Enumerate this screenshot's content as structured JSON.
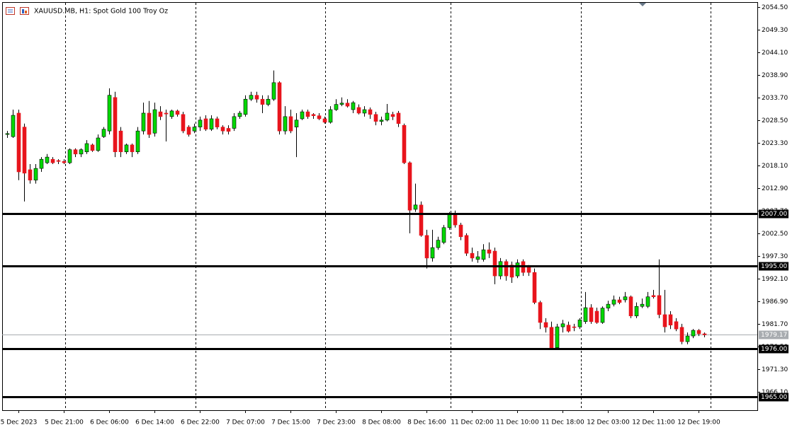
{
  "chart_data": {
    "type": "candlestick",
    "title": "XAUUSD.MB, H1:  Spot Gold 100 Troy Oz",
    "up_color": "#00d800",
    "down_color": "#e8141c",
    "wick_color": "#000000",
    "categories": [
      null,
      null,
      "5 Dec 2023",
      null,
      null,
      null,
      null,
      null,
      null,
      null,
      "5 Dec 21:00",
      null,
      null,
      null,
      null,
      null,
      null,
      null,
      "6 Dec 06:00",
      null,
      null,
      null,
      null,
      null,
      null,
      null,
      "6 Dec 14:00",
      null,
      null,
      null,
      null,
      null,
      null,
      null,
      "6 Dec 22:00",
      null,
      null,
      null,
      null,
      null,
      null,
      null,
      "7 Dec 07:00",
      null,
      null,
      null,
      null,
      null,
      null,
      null,
      "7 Dec 15:00",
      null,
      null,
      null,
      null,
      null,
      null,
      null,
      "7 Dec 23:00",
      null,
      null,
      null,
      null,
      null,
      null,
      null,
      "8 Dec 08:00",
      null,
      null,
      null,
      null,
      null,
      null,
      null,
      "8 Dec 16:00",
      null,
      null,
      null,
      null,
      null,
      null,
      null,
      "11 Dec 02:00",
      null,
      null,
      null,
      null,
      null,
      null,
      null,
      "11 Dec 10:00",
      null,
      null,
      null,
      null,
      null,
      null,
      null,
      "11 Dec 18:00",
      null,
      null,
      null,
      null,
      null,
      null,
      null,
      "12 Dec 03:00",
      null,
      null,
      null,
      null,
      null,
      null,
      null,
      "12 Dec 11:00",
      null,
      null,
      null,
      null,
      null,
      null,
      null,
      "12 Dec 19:00",
      null
    ],
    "open": [
      2025.2,
      2024.7,
      2030.1,
      2026.9,
      2017.1,
      2014.7,
      2017.4,
      2018.7,
      2019.5,
      2019.2,
      2019.0,
      2018.7,
      2021.7,
      2020.7,
      2021.2,
      2022.8,
      2021.5,
      2024.7,
      2026.0,
      2033.7,
      2026.0,
      2021.2,
      2022.8,
      2021.2,
      2026.0,
      2030.1,
      2025.5,
      2030.4,
      2030.1,
      2029.3,
      2030.6,
      2029.8,
      2026.9,
      2026.0,
      2026.9,
      2028.8,
      2026.4,
      2028.8,
      2026.9,
      2026.6,
      2026.6,
      2029.3,
      2029.8,
      2033.3,
      2034.2,
      2033.3,
      2032.1,
      2033.3,
      2037.1,
      2026.0,
      2029.3,
      2026.9,
      2028.8,
      2030.4,
      2029.8,
      2029.5,
      2028.8,
      2028.0,
      2030.9,
      2032.1,
      2032.4,
      2030.9,
      2031.4,
      2030.1,
      2030.9,
      2029.8,
      2028.2,
      2028.5,
      2029.8,
      2030.1,
      2027.3,
      2018.7,
      2008.0,
      2009.0,
      2002.0,
      1996.8,
      1999.2,
      2000.4,
      2003.8,
      2006.9,
      2004.4,
      2002.0,
      1997.9,
      1996.5,
      1996.5,
      1998.7,
      1998.4,
      1992.7,
      1996.0,
      1995.2,
      1992.7,
      1996.0,
      1994.7,
      1993.5,
      1986.6,
      1982.0,
      1980.9,
      1976.2,
      1981.0,
      1981.4,
      1981.0,
      1981.0,
      1982.2,
      1985.4,
      1984.6,
      1982.0,
      1985.3,
      1986.2,
      1987.2,
      1987.2,
      1987.9,
      1983.5,
      1985.7,
      1985.7,
      1988.2,
      1988.2,
      1983.8,
      1983.8,
      1982.2,
      1980.9,
      1977.6,
      1978.9,
      1980.2,
      1979.4
    ],
    "high": [
      2026.0,
      2030.9,
      2030.9,
      2027.7,
      2018.4,
      2018.4,
      2020.0,
      2020.7,
      2020.0,
      2019.5,
      2019.5,
      2022.0,
      2022.0,
      2022.0,
      2023.9,
      2023.1,
      2025.2,
      2026.9,
      2035.8,
      2035.0,
      2026.9,
      2023.1,
      2023.1,
      2026.9,
      2032.5,
      2032.9,
      2032.5,
      2031.7,
      2030.9,
      2030.9,
      2030.9,
      2030.4,
      2027.3,
      2027.7,
      2029.3,
      2029.6,
      2029.6,
      2029.3,
      2027.3,
      2027.3,
      2030.1,
      2030.6,
      2034.2,
      2035.0,
      2035.0,
      2034.2,
      2034.2,
      2039.9,
      2037.4,
      2031.7,
      2030.9,
      2030.1,
      2030.9,
      2030.9,
      2030.1,
      2030.1,
      2029.3,
      2031.7,
      2033.3,
      2033.7,
      2033.3,
      2032.9,
      2032.1,
      2031.7,
      2031.4,
      2030.4,
      2029.3,
      2032.2,
      2030.4,
      2030.6,
      2027.7,
      2019.0,
      2013.9,
      2009.8,
      2003.3,
      2003.3,
      2001.7,
      2004.4,
      2007.4,
      2007.7,
      2004.9,
      2002.5,
      1999.2,
      1998.4,
      2000.0,
      2000.4,
      1999.2,
      1996.8,
      1996.5,
      1996.0,
      1996.5,
      1996.5,
      1995.2,
      1994.4,
      1987.0,
      1983.0,
      1982.2,
      1981.7,
      1982.6,
      1982.2,
      1981.7,
      1983.0,
      1989.0,
      1986.2,
      1985.4,
      1985.7,
      1987.0,
      1988.2,
      1987.9,
      1989.0,
      1988.2,
      1986.6,
      1987.5,
      1989.0,
      1989.5,
      1996.5,
      1989.5,
      1984.6,
      1983.0,
      1981.7,
      1979.7,
      1980.5,
      1980.5,
      1979.7
    ],
    "low": [
      2024.4,
      2024.4,
      2014.7,
      2009.8,
      2013.9,
      2013.9,
      2016.6,
      2018.4,
      2018.4,
      2018.4,
      2018.4,
      2018.4,
      2020.0,
      2020.0,
      2020.7,
      2021.2,
      2021.2,
      2024.4,
      2025.2,
      2020.0,
      2020.0,
      2020.7,
      2020.0,
      2020.7,
      2025.2,
      2024.4,
      2024.7,
      2028.5,
      2023.6,
      2028.8,
      2029.3,
      2025.5,
      2024.7,
      2025.5,
      2026.0,
      2026.0,
      2026.0,
      2026.4,
      2025.2,
      2025.2,
      2026.0,
      2028.8,
      2029.3,
      2032.9,
      2032.5,
      2030.1,
      2031.7,
      2032.9,
      2025.2,
      2025.2,
      2025.5,
      2020.0,
      2028.5,
      2028.8,
      2028.8,
      2028.5,
      2027.7,
      2027.7,
      2030.6,
      2031.7,
      2031.4,
      2030.1,
      2029.8,
      2029.3,
      2028.8,
      2027.3,
      2027.3,
      2028.2,
      2028.5,
      2026.9,
      2018.4,
      2002.5,
      2007.4,
      2001.7,
      1994.4,
      1996.0,
      1998.7,
      2000.0,
      2003.3,
      2003.8,
      2000.9,
      1997.3,
      1996.0,
      1995.7,
      1996.0,
      1996.8,
      1990.8,
      1991.9,
      1991.6,
      1991.1,
      1992.2,
      1992.7,
      1992.7,
      1986.2,
      1980.5,
      1979.7,
      1976.0,
      1976.0,
      1979.7,
      1979.7,
      1980.0,
      1980.5,
      1981.7,
      1981.7,
      1981.7,
      1981.7,
      1984.6,
      1985.7,
      1986.2,
      1986.6,
      1983.0,
      1983.0,
      1985.3,
      1985.3,
      1987.5,
      1983.0,
      1979.7,
      1980.5,
      1980.0,
      1977.0,
      1977.0,
      1978.4,
      1978.9,
      1978.6
    ],
    "close": [
      2025.4,
      2029.6,
      2016.6,
      2016.3,
      2014.7,
      2017.4,
      2019.5,
      2020.0,
      2018.7,
      2019.0,
      2018.7,
      2021.7,
      2020.7,
      2021.7,
      2023.1,
      2021.5,
      2024.4,
      2026.4,
      2034.2,
      2021.2,
      2021.2,
      2022.8,
      2021.2,
      2026.0,
      2030.1,
      2025.2,
      2030.9,
      2029.3,
      2029.9,
      2030.6,
      2029.8,
      2026.0,
      2025.2,
      2026.9,
      2028.5,
      2026.4,
      2028.8,
      2026.9,
      2026.0,
      2025.9,
      2029.3,
      2030.1,
      2033.3,
      2034.2,
      2033.3,
      2032.1,
      2033.3,
      2037.1,
      2026.0,
      2029.3,
      2026.0,
      2028.5,
      2030.4,
      2029.3,
      2029.5,
      2028.8,
      2028.0,
      2030.9,
      2032.1,
      2032.4,
      2031.7,
      2032.5,
      2030.1,
      2030.9,
      2029.8,
      2028.2,
      2028.5,
      2030.1,
      2029.3,
      2027.7,
      2018.7,
      2007.8,
      2009.0,
      2002.0,
      1996.8,
      1999.2,
      2000.9,
      2003.8,
      2006.9,
      2004.4,
      2001.7,
      1997.9,
      1996.8,
      1997.1,
      1998.7,
      1997.9,
      1992.7,
      1996.0,
      1992.7,
      1992.4,
      1995.7,
      1993.5,
      1993.5,
      1986.6,
      1982.0,
      1980.9,
      1976.2,
      1981.0,
      1981.7,
      1980.0,
      1980.9,
      1982.6,
      1985.4,
      1982.2,
      1982.0,
      1985.3,
      1986.2,
      1987.2,
      1986.6,
      1987.9,
      1983.5,
      1985.7,
      1986.2,
      1987.9,
      1987.9,
      1983.8,
      1981.0,
      1981.4,
      1980.5,
      1977.6,
      1978.9,
      1980.2,
      1979.4,
      1979.17
    ],
    "ylim": [
      1961.85,
      2055.6
    ],
    "yticks": [
      {
        "value": 2054.5,
        "label": "2054.50"
      },
      {
        "value": 2049.3,
        "label": "2049.30"
      },
      {
        "value": 2044.1,
        "label": "2044.10"
      },
      {
        "value": 2038.9,
        "label": "2038.90"
      },
      {
        "value": 2033.7,
        "label": "2033.70"
      },
      {
        "value": 2028.5,
        "label": "2028.50"
      },
      {
        "value": 2023.3,
        "label": "2023.30"
      },
      {
        "value": 2018.1,
        "label": "2018.10"
      },
      {
        "value": 2012.9,
        "label": "2012.90"
      },
      {
        "value": 2007.7,
        "label": "2007.70"
      },
      {
        "value": 2002.5,
        "label": "2002.50"
      },
      {
        "value": 1997.3,
        "label": "1997.30"
      },
      {
        "value": 1992.1,
        "label": "1992.10"
      },
      {
        "value": 1986.9,
        "label": "1986.90"
      },
      {
        "value": 1981.7,
        "label": "1981.70"
      },
      {
        "value": 1976.5,
        "label": "1976.50"
      },
      {
        "value": 1971.3,
        "label": "1971.30"
      },
      {
        "value": 1966.1,
        "label": "1966.10"
      }
    ],
    "levels": [
      {
        "value": 2007,
        "label": "2007.00"
      },
      {
        "value": 1995,
        "label": "1995.00"
      },
      {
        "value": 1976,
        "label": "1976.00"
      },
      {
        "value": 1965,
        "label": "1965.00"
      }
    ],
    "last_price": {
      "value": 1979.17,
      "label": "1979.17"
    }
  }
}
